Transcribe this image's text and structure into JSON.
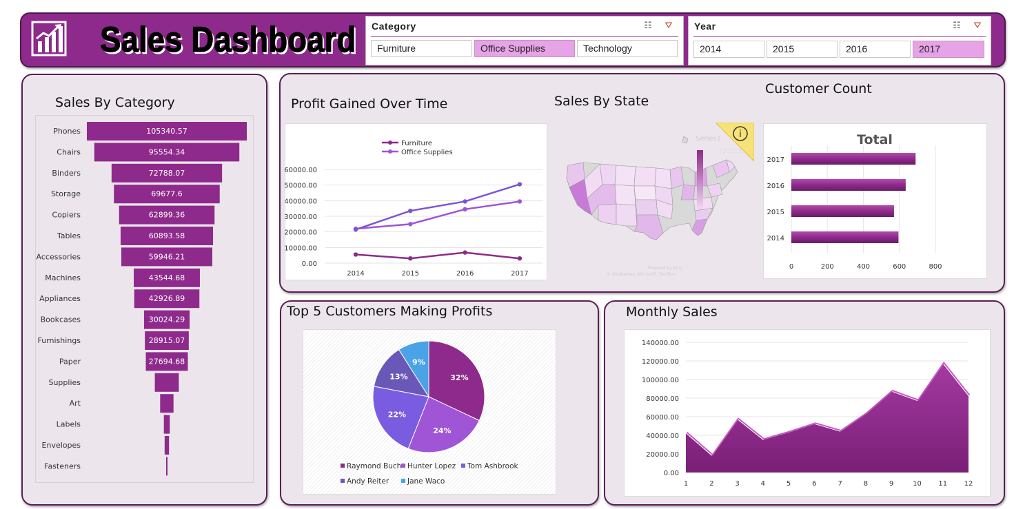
{
  "header": {
    "title": "Sales Dashboard",
    "logo_icon": "bar-chart-icon"
  },
  "category_slicer": {
    "title": "Category",
    "options": [
      "Furniture",
      "Office Supplies",
      "Technology"
    ],
    "selected": "Office Supplies",
    "multiselect_icon": "multi-select-icon",
    "clear_icon": "clear-filter-icon"
  },
  "year_slicer": {
    "title": "Year",
    "options": [
      "2014",
      "2015",
      "2016",
      "2017"
    ],
    "selected": "2017",
    "multiselect_icon": "multi-select-icon",
    "clear_icon": "clear-filter-icon"
  },
  "sales_by_category": {
    "title": "Sales  By Category",
    "chart_data": {
      "type": "bar",
      "categories": [
        "Phones",
        "Chairs",
        "Binders",
        "Storage",
        "Copiers",
        "Tables",
        "Accessories",
        "Machines",
        "Appliances",
        "Bookcases",
        "Furnishings",
        "Paper",
        "Supplies",
        "Art",
        "Labels",
        "Envelopes",
        "Fasteners"
      ],
      "values": [
        105340.57,
        95554.34,
        72788.07,
        69677.6,
        62899.36,
        60893.58,
        59946.21,
        43544.68,
        42926.89,
        30024.29,
        28915.07,
        27694.68,
        15800,
        8800,
        3900,
        2900,
        700
      ],
      "labels": [
        "105340.57",
        "95554.34",
        "72788.07",
        "69677.6",
        "62899.36",
        "60893.58",
        "59946.21",
        "43544.68",
        "42926.89",
        "30024.29",
        "28915.07",
        "27694.68",
        "",
        "",
        "",
        "",
        ""
      ]
    }
  },
  "profit_over_time": {
    "title": "Profit Gained Over Time",
    "chart_data": {
      "type": "line",
      "x": [
        "2014",
        "2015",
        "2016",
        "2017"
      ],
      "series": [
        {
          "name": "Furniture",
          "values": [
            5500,
            3000,
            6800,
            3000
          ],
          "color": "#8e2a8b"
        },
        {
          "name": "Office Supplies",
          "values": [
            22000,
            25000,
            34500,
            39500
          ],
          "color": "#a054d6"
        },
        {
          "name": "",
          "values": [
            21500,
            33500,
            39500,
            50500
          ],
          "color": "#7a55d6"
        }
      ],
      "ylim": [
        0,
        60000
      ],
      "yticks": [
        "0.00",
        "10000.00",
        "20000.00",
        "30000.00",
        "40000.00",
        "50000.00",
        "60000.00"
      ]
    }
  },
  "sales_by_state": {
    "title": "Sales By State",
    "legend_title": "Series1",
    "legend_max": "733215.26",
    "legend_min": "0",
    "attribution_1": "Powered by Bing",
    "attribution_2": "© GeoNames, Microsoft, TomTom",
    "info_icon": "info-icon"
  },
  "customer_count": {
    "title": "Customer Count",
    "chart_data": {
      "type": "bar",
      "title": "Total",
      "categories": [
        "2017",
        "2016",
        "2015",
        "2014"
      ],
      "values": [
        690,
        635,
        570,
        595
      ],
      "xlim": [
        0,
        800
      ],
      "xticks": [
        "0",
        "200",
        "400",
        "600",
        "800"
      ]
    }
  },
  "top_customers": {
    "title": "Top 5 Customers Making Profits",
    "chart_data": {
      "type": "pie",
      "slices": [
        {
          "name": "Raymond Buch",
          "value": 32,
          "label": "32%",
          "color": "#8e2a8b"
        },
        {
          "name": "Hunter Lopez",
          "value": 24,
          "label": "24%",
          "color": "#a054d6"
        },
        {
          "name": "Tom Ashbrook",
          "value": 22,
          "label": "22%",
          "color": "#7a5ce0"
        },
        {
          "name": "Andy Reiter",
          "value": 13,
          "label": "13%",
          "color": "#6a58b8"
        },
        {
          "name": "Jane Waco",
          "value": 9,
          "label": "9%",
          "color": "#4aa3e6"
        }
      ]
    }
  },
  "monthly_sales": {
    "title": "Monthly Sales",
    "chart_data": {
      "type": "area",
      "x": [
        1,
        2,
        3,
        4,
        5,
        6,
        7,
        8,
        9,
        10,
        11,
        12
      ],
      "values": [
        42000,
        18000,
        57000,
        35000,
        43000,
        52000,
        44000,
        63000,
        87000,
        77000,
        117000,
        82000
      ],
      "ylim": [
        0,
        140000
      ],
      "yticks": [
        "0.00",
        "20000.00",
        "40000.00",
        "60000.00",
        "80000.00",
        "100000.00",
        "120000.00",
        "140000.00"
      ]
    }
  }
}
